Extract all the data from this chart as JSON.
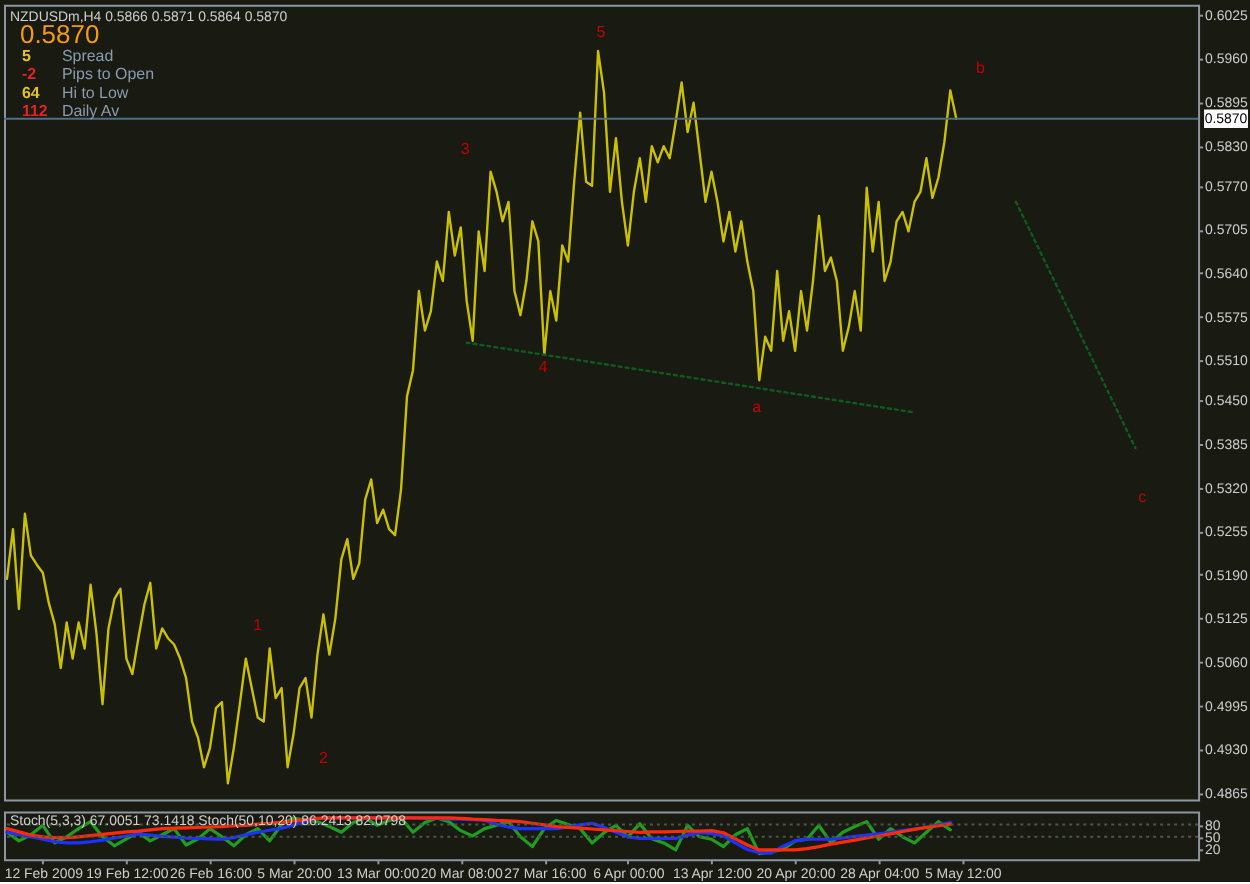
{
  "chart_data": [
    {
      "type": "line",
      "title": "NZDUSDm,H4 0.5866 0.5871 0.5864 0.5870",
      "categories": [
        null,
        null,
        null,
        null,
        null,
        null,
        null,
        null,
        null,
        null,
        null,
        null,
        null,
        null,
        null,
        null,
        null,
        null,
        null,
        null,
        null,
        null,
        null,
        null,
        null,
        null,
        null,
        null,
        null,
        null,
        null,
        null,
        null,
        null,
        null,
        null,
        null,
        null,
        null,
        null,
        null,
        null,
        null,
        null,
        null,
        null,
        null,
        null,
        null,
        null,
        null,
        null,
        null,
        null,
        null,
        null,
        null,
        null,
        null,
        null,
        null,
        null,
        null,
        null,
        null,
        null,
        null,
        null,
        null,
        null,
        null,
        null,
        null,
        null,
        null,
        null,
        null,
        null,
        null,
        null,
        null,
        null,
        null,
        null,
        null,
        null,
        null,
        null,
        null,
        null,
        null,
        null,
        null,
        null,
        null,
        null,
        null,
        null,
        null,
        null,
        null,
        null,
        null,
        null,
        null,
        null,
        null,
        null,
        null,
        null,
        null,
        null,
        null,
        null,
        null,
        null,
        null,
        null,
        null,
        null,
        null,
        null,
        null,
        null,
        null,
        null,
        null,
        null,
        null,
        null,
        null,
        null,
        null,
        null,
        null,
        null,
        null,
        null,
        null,
        null,
        null,
        null,
        null,
        null,
        null,
        null,
        null,
        null,
        null,
        null,
        null,
        null,
        null,
        null,
        null,
        null,
        null,
        null,
        null,
        null,
        null,
        null,
        null,
        null,
        null,
        null,
        null,
        null,
        null,
        null,
        null,
        null,
        null,
        null,
        null,
        null,
        null,
        null,
        null,
        null,
        null,
        null,
        null,
        null,
        null,
        null,
        null,
        null,
        null,
        null,
        null,
        null,
        null,
        null,
        null,
        null,
        null,
        null,
        null,
        null
      ],
      "series": [
        {
          "color": "#c8c000",
          "values": [
            0.5184,
            0.5258,
            0.5139,
            0.5281,
            0.5219,
            0.5205,
            0.5193,
            0.5148,
            0.5116,
            0.5051,
            0.5119,
            0.5065,
            0.5119,
            0.508,
            0.5175,
            0.5101,
            0.4997,
            0.511,
            0.5154,
            0.5169,
            0.5065,
            0.5042,
            0.5095,
            0.5145,
            0.5178,
            0.508,
            0.511,
            0.5095,
            0.5086,
            0.5065,
            0.5036,
            0.4971,
            0.4947,
            0.4903,
            0.4932,
            0.4991,
            0.5,
            0.4879,
            0.4932,
            0.4997,
            0.5065,
            0.5021,
            0.4977,
            0.4971,
            0.508,
            0.5006,
            0.5021,
            0.4903,
            0.4953,
            0.5021,
            0.5036,
            0.4977,
            0.5071,
            0.5131,
            0.5071,
            0.5125,
            0.5213,
            0.5243,
            0.5184,
            0.5207,
            0.5302,
            0.5332,
            0.5267,
            0.5287,
            0.5258,
            0.5249,
            0.5317,
            0.5456,
            0.5495,
            0.5613,
            0.5554,
            0.5583,
            0.5657,
            0.5628,
            0.5731,
            0.5666,
            0.5708,
            0.5598,
            0.5539,
            0.5702,
            0.5643,
            0.5791,
            0.5761,
            0.5717,
            0.5746,
            0.5613,
            0.5577,
            0.5628,
            0.5717,
            0.5687,
            0.5518,
            0.5613,
            0.5569,
            0.5681,
            0.5657,
            0.5776,
            0.5879,
            0.5776,
            0.577,
            0.5971,
            0.5909,
            0.5761,
            0.5841,
            0.5746,
            0.5681,
            0.5761,
            0.5811,
            0.5746,
            0.5829,
            0.5805,
            0.5829,
            0.5811,
            0.5865,
            0.5924,
            0.585,
            0.5894,
            0.582,
            0.5746,
            0.5791,
            0.5746,
            0.5687,
            0.5731,
            0.5672,
            0.5717,
            0.5657,
            0.5613,
            0.548,
            0.5545,
            0.5524,
            0.5643,
            0.5539,
            0.5583,
            0.5524,
            0.5613,
            0.5554,
            0.5628,
            0.5725,
            0.5643,
            0.5663,
            0.5628,
            0.5524,
            0.556,
            0.5613,
            0.5554,
            0.5767,
            0.5672,
            0.5746,
            0.5628,
            0.5657,
            0.5717,
            0.5731,
            0.5702,
            0.5746,
            0.5761,
            0.5811,
            0.5752,
            0.5782,
            0.5835,
            0.5912,
            0.587,
            null,
            null,
            null,
            null,
            null,
            null,
            null,
            null,
            null,
            null,
            null,
            null,
            null,
            null,
            null,
            null,
            null,
            null,
            null,
            null,
            null,
            null,
            null,
            null,
            null,
            null,
            null,
            null,
            null,
            null,
            null,
            null,
            null,
            null,
            null,
            null,
            null,
            null,
            null,
            null
          ]
        },
        {
          "type": "line",
          "color": "#0f5a1e",
          "line_style": "dotted",
          "values": [
            null,
            null,
            null,
            null,
            null,
            null,
            null,
            null,
            null,
            null,
            null,
            null,
            null,
            null,
            null,
            null,
            null,
            null,
            null,
            null,
            null,
            null,
            null,
            null,
            null,
            null,
            null,
            null,
            null,
            null,
            null,
            null,
            null,
            null,
            null,
            null,
            null,
            null,
            null,
            null,
            null,
            null,
            null,
            null,
            null,
            null,
            null,
            null,
            null,
            null,
            null,
            null,
            null,
            null,
            null,
            null,
            null,
            null,
            null,
            null,
            null,
            null,
            null,
            null,
            null,
            null,
            null,
            null,
            null,
            null,
            null,
            null,
            null,
            null,
            null,
            null,
            null,
            0.5536,
            null,
            null,
            null,
            null,
            null,
            null,
            null,
            null,
            null,
            null,
            null,
            null,
            null,
            null,
            null,
            null,
            null,
            null,
            null,
            null,
            null,
            null,
            null,
            null,
            null,
            null,
            null,
            null,
            null,
            null,
            null,
            null,
            null,
            null,
            null,
            null,
            null,
            null,
            null,
            null,
            null,
            null,
            null,
            null,
            null,
            null,
            null,
            null,
            null,
            null,
            null,
            null,
            null,
            null,
            null,
            null,
            null,
            null,
            null,
            null,
            null,
            null,
            null,
            null,
            null,
            null,
            null,
            null,
            null,
            null,
            null,
            null,
            null,
            null,
            0.5432,
            null,
            null,
            null,
            null,
            null,
            null,
            null,
            null,
            null,
            null,
            null,
            null,
            null,
            null,
            null,
            null,
            null,
            null,
            null,
            null,
            null,
            null,
            null,
            null,
            null,
            null,
            null,
            null,
            null,
            null,
            null,
            null,
            null,
            null,
            null,
            null,
            null,
            null,
            null,
            null,
            null,
            null,
            null,
            null,
            null,
            null,
            null
          ]
        },
        {
          "type": "line",
          "color": "#0f5a1e",
          "line_style": "dotted",
          "values": [
            null,
            null,
            null,
            null,
            null,
            null,
            null,
            null,
            null,
            null,
            null,
            null,
            null,
            null,
            null,
            null,
            null,
            null,
            null,
            null,
            null,
            null,
            null,
            null,
            null,
            null,
            null,
            null,
            null,
            null,
            null,
            null,
            null,
            null,
            null,
            null,
            null,
            null,
            null,
            null,
            null,
            null,
            null,
            null,
            null,
            null,
            null,
            null,
            null,
            null,
            null,
            null,
            null,
            null,
            null,
            null,
            null,
            null,
            null,
            null,
            null,
            null,
            null,
            null,
            null,
            null,
            null,
            null,
            null,
            null,
            null,
            null,
            null,
            null,
            null,
            null,
            null,
            null,
            null,
            null,
            null,
            null,
            null,
            null,
            null,
            null,
            null,
            null,
            null,
            null,
            null,
            null,
            null,
            null,
            null,
            null,
            null,
            null,
            null,
            null,
            null,
            null,
            null,
            null,
            null,
            null,
            null,
            null,
            null,
            null,
            null,
            null,
            null,
            null,
            null,
            null,
            null,
            null,
            null,
            null,
            null,
            null,
            null,
            null,
            null,
            null,
            null,
            null,
            null,
            null,
            null,
            null,
            null,
            null,
            null,
            null,
            null,
            null,
            null,
            null,
            null,
            null,
            null,
            null,
            null,
            null,
            null,
            null,
            null,
            null,
            null,
            null,
            null,
            null,
            null,
            null,
            null,
            null,
            null,
            null,
            null,
            null,
            null,
            null,
            null,
            null,
            null,
            null,
            null,
            0.5746,
            null,
            null,
            null,
            null,
            null,
            null,
            null,
            null,
            null,
            null,
            null,
            null,
            null,
            null,
            null,
            null,
            null,
            null,
            null,
            0.5379,
            null,
            null,
            null,
            null,
            null,
            null,
            null,
            null,
            null,
            null
          ]
        }
      ],
      "ylim": [
        0.4855,
        0.604
      ],
      "yticks": [
        0.6025,
        {
          "value": 0.596,
          "label": "0.5960"
        },
        0.5895,
        {
          "value": 0.583,
          "label": "0.5830"
        },
        {
          "value": 0.577,
          "label": "0.5770"
        },
        0.5705,
        {
          "value": 0.564,
          "label": "0.5640"
        },
        0.5575,
        {
          "value": 0.551,
          "label": "0.5510"
        },
        {
          "value": 0.545,
          "label": "0.5450"
        },
        0.5385,
        {
          "value": 0.532,
          "label": "0.5320"
        },
        0.5255,
        {
          "value": 0.519,
          "label": "0.5190"
        },
        0.5125,
        {
          "value": 0.506,
          "label": "0.5060"
        },
        0.4995,
        {
          "value": 0.493,
          "label": "0.4930"
        },
        0.4865
      ],
      "tick_labels": "y",
      "ref_lines": [
        {
          "axis": "y",
          "value": 0.587,
          "label": "0.5870",
          "color": "#4f6e88"
        }
      ],
      "annotations": [
        "0.5870",
        "5",
        "Spread",
        "-2",
        "Pips to Open",
        "64",
        "Hi to Low",
        "112",
        "Daily Av",
        "1",
        "2",
        "3",
        "4",
        "5",
        "a",
        "b",
        "c"
      ]
    },
    {
      "type": "line",
      "title": "Stoch(5,3,3) 67.0051 73.1418  Stoch(50,10,20) 86.2413 82.0798",
      "categories": [
        null,
        null,
        null,
        "12 Feb 2009",
        null,
        null,
        null,
        null,
        null,
        null,
        "19 Feb 12:00",
        null,
        null,
        null,
        null,
        null,
        null,
        "26 Feb 16:00",
        null,
        null,
        null,
        null,
        null,
        null,
        "5 Mar 20:00",
        null,
        null,
        null,
        null,
        null,
        null,
        "13 Mar 00:00",
        null,
        null,
        null,
        null,
        null,
        null,
        "20 Mar 08:00",
        null,
        null,
        null,
        null,
        null,
        null,
        "27 Mar 16:00",
        null,
        null,
        null,
        null,
        null,
        null,
        "6 Apr 00:00",
        null,
        null,
        null,
        null,
        null,
        null,
        "13 Apr 12:00",
        null,
        null,
        null,
        null,
        null,
        null,
        "20 Apr 20:00",
        null,
        null,
        null,
        null,
        null,
        null,
        "28 Apr 04:00",
        null,
        null,
        null,
        null,
        null,
        null,
        "5 May 12:00",
        null,
        null,
        null,
        null,
        null,
        null,
        null,
        null,
        null,
        null,
        null,
        null,
        null,
        null,
        null,
        null,
        null,
        null,
        null
      ],
      "series": [
        {
          "color": "#1e9e1e",
          "values": [
            61,
            40,
            55,
            78,
            35,
            50,
            70,
            87,
            50,
            28,
            45,
            61,
            40,
            55,
            70,
            30,
            45,
            70,
            50,
            28,
            55,
            70,
            40,
            80,
            96,
            90,
            87,
            75,
            61,
            85,
            96,
            78,
            90,
            96,
            61,
            85,
            96,
            87,
            65,
            52,
            70,
            78,
            87,
            50,
            26,
            70,
            90,
            80,
            70,
            35,
            60,
            78,
            50,
            82,
            45,
            35,
            18,
            78,
            50,
            44,
            26,
            55,
            70,
            9,
            13,
            20,
            40,
            44,
            78,
            35,
            61,
            75,
            87,
            44,
            70,
            50,
            35,
            61,
            87,
            67,
            null,
            null,
            null,
            null,
            null,
            null,
            null,
            null,
            null,
            null,
            null,
            null,
            null,
            null,
            null,
            null,
            null,
            null,
            null,
            null
          ]
        },
        {
          "color": "#1e32ff",
          "values": [
            61,
            55,
            50,
            44,
            38,
            35,
            35,
            38,
            42,
            47,
            52,
            57,
            54,
            51,
            49,
            47,
            46,
            45,
            44,
            48,
            55,
            61,
            66,
            71,
            79,
            87,
            94,
            96,
            96,
            96,
            96,
            96,
            96,
            96,
            96,
            95,
            95,
            94,
            93,
            92,
            90,
            81,
            74,
            70,
            70,
            70,
            70,
            74,
            79,
            83,
            73,
            61,
            50,
            46,
            46,
            46,
            46,
            54,
            60,
            58,
            52,
            35,
            19,
            11,
            10,
            27,
            40,
            44,
            44,
            44,
            47,
            51,
            54,
            57,
            61,
            65,
            69,
            73,
            79,
            85,
            null,
            null,
            null,
            null,
            null,
            null,
            null,
            null,
            null,
            null,
            null,
            null,
            null,
            null,
            null,
            null,
            null,
            null,
            null,
            null
          ]
        },
        {
          "color": "#ff2a0a",
          "values": [
            70,
            62,
            54,
            50,
            48,
            48,
            50,
            53,
            56,
            59,
            62,
            64,
            67,
            70,
            71,
            72,
            73,
            74,
            75,
            77,
            78,
            81,
            83,
            86,
            89,
            92,
            95,
            96,
            96,
            96,
            96,
            96,
            96,
            96,
            96,
            96,
            96,
            96,
            95,
            93,
            92,
            90,
            89,
            87,
            83,
            79,
            75,
            73,
            71,
            69,
            67,
            65,
            63,
            61,
            62,
            62,
            63,
            64,
            64,
            65,
            60,
            45,
            30,
            18,
            18,
            18,
            18,
            21,
            26,
            32,
            37,
            42,
            47,
            52,
            57,
            63,
            68,
            73,
            77,
            81,
            null,
            null,
            null,
            null,
            null,
            null,
            null,
            null,
            null,
            null,
            null,
            null,
            null,
            null,
            null,
            null,
            null,
            null,
            null,
            null
          ]
        }
      ],
      "ylim": [
        -5,
        112
      ],
      "yticks": [
        20,
        50,
        80
      ],
      "ref_lines": [
        {
          "axis": "y",
          "value": 80,
          "color": "#4a5842",
          "line_style": "dotted"
        },
        {
          "axis": "y",
          "value": 50,
          "color": "#4a5842",
          "line_style": "dotted"
        }
      ]
    }
  ]
}
